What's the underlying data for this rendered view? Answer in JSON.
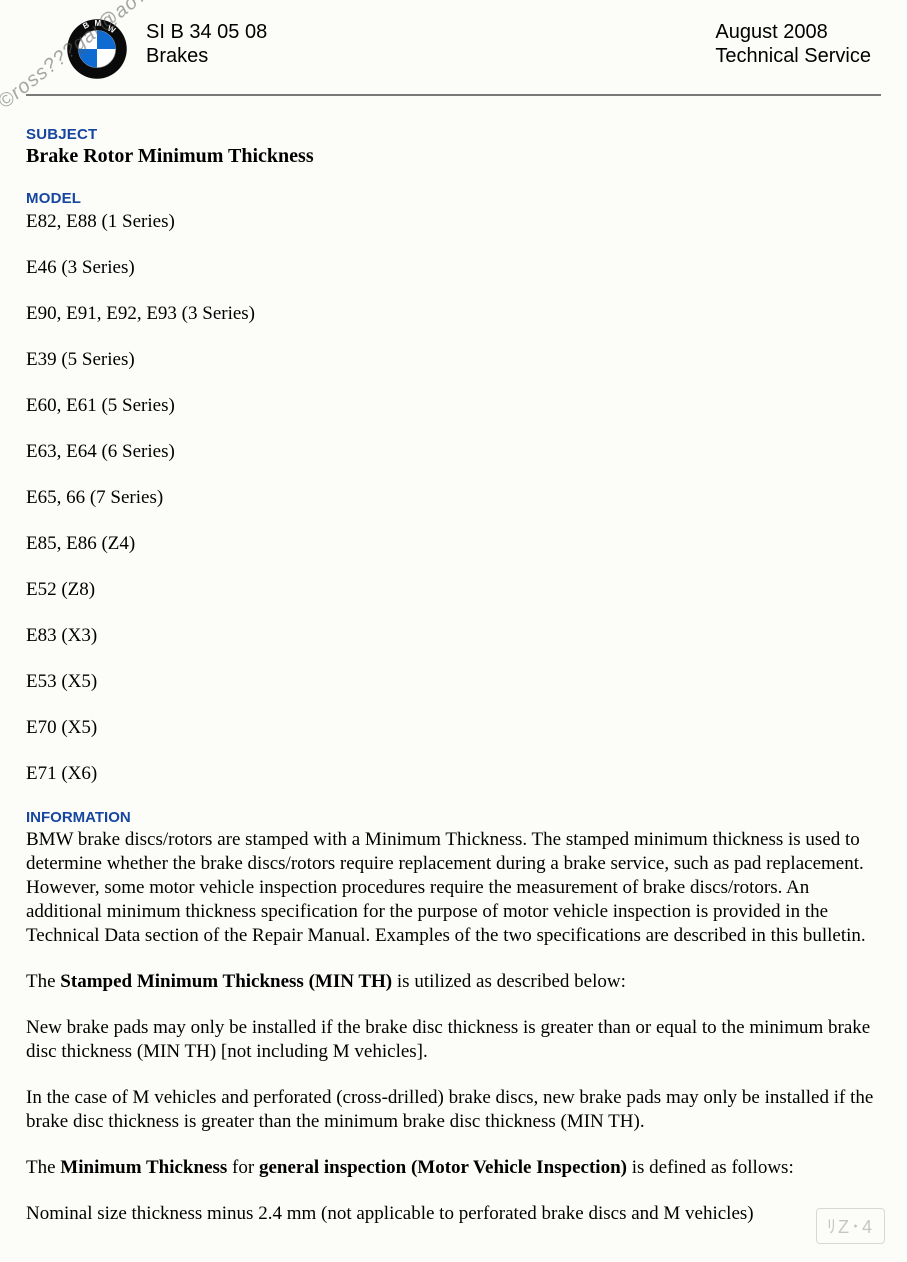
{
  "colors": {
    "background": "#fcfdf9",
    "text": "#000000",
    "section_label": "#1646a0",
    "rule": "#7a7a7a",
    "logo_ring": "#0a0a0a",
    "logo_blue": "#0f6bd1",
    "logo_white": "#ffffff",
    "logo_letter": "#ffffff",
    "watermark": "rgba(90,95,90,0.55)",
    "stamp_border": "rgba(150,150,150,0.35)",
    "stamp_text": "rgba(130,130,130,0.45)"
  },
  "typography": {
    "body_family": "Times New Roman",
    "label_family": "Arial",
    "body_size_pt": 14,
    "label_size_pt": 11,
    "header_size_pt": 15
  },
  "header": {
    "doc_number": "SI B 34 05 08",
    "category": "Brakes",
    "date": "August 2008",
    "dept": "Technical Service",
    "logo_letters": "BMW"
  },
  "watermark": "©ross???gar@ao?.???",
  "labels": {
    "subject": "SUBJECT",
    "model": "MODEL",
    "information": "INFORMATION"
  },
  "subject_title": "Brake Rotor Minimum Thickness",
  "models": [
    "E82, E88 (1 Series)",
    "E46 (3 Series)",
    "E90, E91, E92, E93 (3 Series)",
    "E39 (5 Series)",
    "E60, E61 (5 Series)",
    "E63, E64 (6 Series)",
    "E65, 66 (7 Series)",
    "E85, E86 (Z4)",
    "E52 (Z8)",
    "E83 (X3)",
    "E53 (X5)",
    "E70 (X5)",
    "E71 (X6)"
  ],
  "info": {
    "p1": "BMW brake discs/rotors are stamped with a Minimum Thickness. The stamped minimum thickness is used to determine whether the brake discs/rotors require replacement during a brake service, such as pad replacement. However, some motor vehicle inspection procedures require the measurement of brake discs/rotors. An additional minimum thickness specification for the purpose of motor vehicle inspection is provided in the Technical Data section of the Repair Manual. Examples of the two specifications are described in this bulletin.",
    "p2_prefix": "The ",
    "p2_bold": "Stamped Minimum Thickness (MIN TH)",
    "p2_suffix": " is utilized as described below:",
    "p3": "New brake pads may only be installed if the brake disc thickness is greater than or equal to the minimum brake disc thickness (MIN TH) [not including M vehicles].",
    "p4": "In the case of M vehicles and perforated (cross-drilled) brake discs, new brake pads may only be installed if the brake disc thickness is greater than the minimum brake disc thickness (MIN TH).",
    "p5_prefix": "The ",
    "p5_bold1": "Minimum Thickness",
    "p5_mid": " for ",
    "p5_bold2": "general inspection (Motor Vehicle Inspection)",
    "p5_suffix": " is defined as follows:",
    "p6": "Nominal size thickness minus 2.4 mm (not applicable to perforated brake discs and M vehicles)"
  },
  "stamp": "ﾘZ･4"
}
